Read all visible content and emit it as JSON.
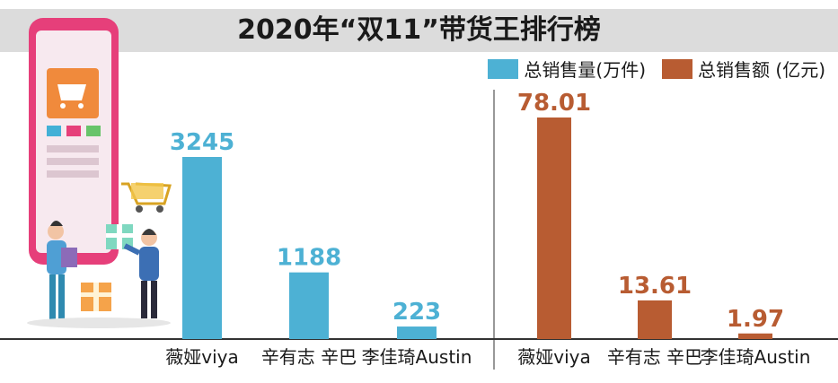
{
  "chart_data": {
    "type": "bar",
    "title": "2020年“双11”带货王排行榜",
    "legend_position": "top-right",
    "grid": false,
    "panels": [
      {
        "series_name": "总销售量(万件)",
        "color": "#4db1d4",
        "categories": [
          "薇娅viya",
          "辛有志 辛巴",
          "李佳琦Austin"
        ],
        "values": [
          3245,
          1188,
          223
        ],
        "data_labels": [
          "3245",
          "1188",
          "223"
        ]
      },
      {
        "series_name": "总销售额 (亿元)",
        "color": "#b85c32",
        "categories": [
          "薇娅viya",
          "辛有志 辛巴",
          "李佳琦Austin"
        ],
        "values": [
          78.01,
          13.61,
          1.97
        ],
        "data_labels": [
          "78.01",
          "13.61",
          "1.97"
        ]
      }
    ]
  }
}
